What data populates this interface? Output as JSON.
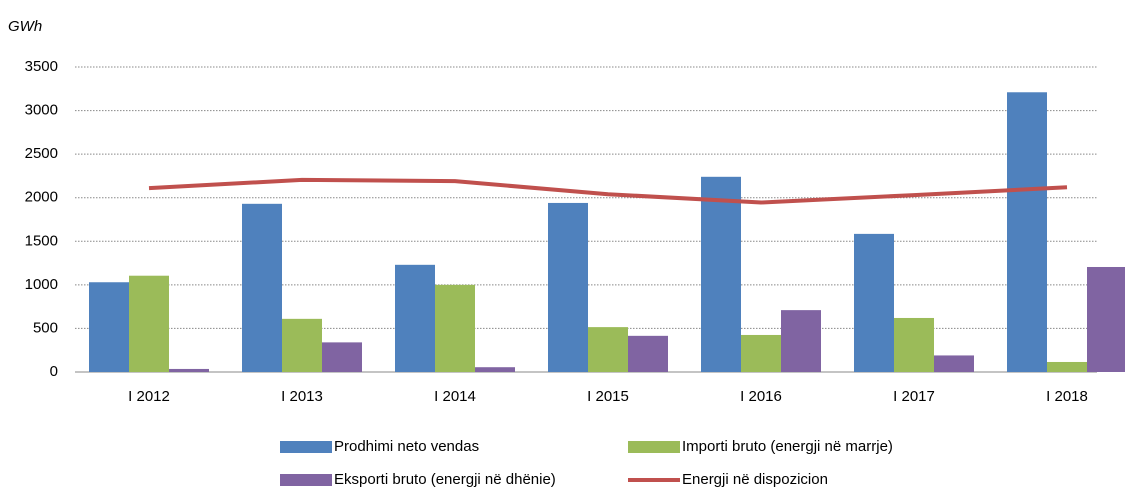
{
  "chart_data": {
    "type": "bar",
    "y_label": "GWh",
    "categories": [
      "I 2012",
      "I 2013",
      "I 2014",
      "I 2015",
      "I 2016",
      "I 2017",
      "I 2018"
    ],
    "series": [
      {
        "name": "Prodhimi neto vendas",
        "color": "#4f81bd",
        "values": [
          1030,
          1930,
          1230,
          1940,
          2240,
          1585,
          3210
        ]
      },
      {
        "name": "Importi bruto (energji në marrje)",
        "color": "#9bbb59",
        "values": [
          1105,
          610,
          1000,
          515,
          425,
          620,
          115
        ]
      },
      {
        "name": "Eksporti bruto (energji në dhënie)",
        "color": "#8064a2",
        "values": [
          35,
          340,
          55,
          415,
          710,
          190,
          1205
        ]
      },
      {
        "name": "Energji në dispozicion",
        "color": "#c0504d",
        "type": "line",
        "values": [
          2110,
          2205,
          2190,
          2040,
          1945,
          2030,
          2120
        ]
      }
    ],
    "ylim": [
      0,
      3500
    ],
    "yticks": [
      0,
      500,
      1000,
      1500,
      2000,
      2500,
      3000,
      3500
    ],
    "grid": true
  }
}
